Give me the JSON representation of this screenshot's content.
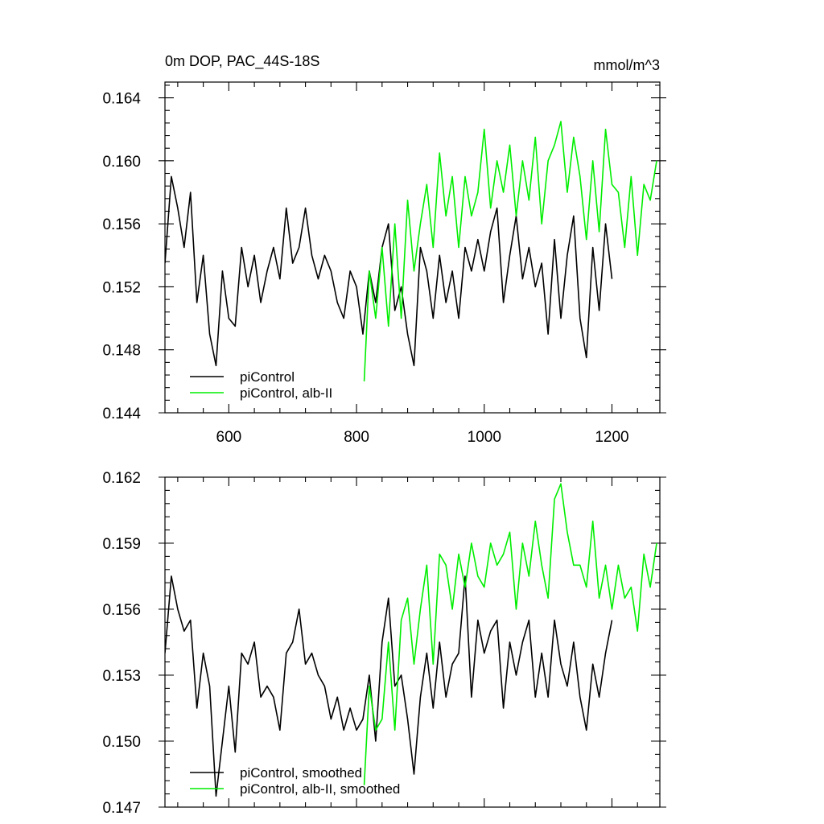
{
  "chart_data": [
    {
      "type": "line",
      "title": "0m DOP, PAC_44S-18S",
      "units": "mmol/m^3",
      "xlim": [
        500,
        1275
      ],
      "ylim": [
        0.144,
        0.165
      ],
      "x_ticks": [
        600,
        800,
        1000,
        1200
      ],
      "x_tick_labels": [
        "600",
        "800",
        "1000",
        "1200"
      ],
      "y_ticks": [
        0.144,
        0.148,
        0.152,
        0.156,
        0.16,
        0.164
      ],
      "y_tick_labels": [
        "0.144",
        "0.148",
        "0.152",
        "0.156",
        "0.160",
        "0.164"
      ],
      "legend_position": "bottom-left",
      "series": [
        {
          "name": "piControl",
          "color": "#000000",
          "x": [
            500,
            510,
            520,
            530,
            540,
            550,
            560,
            570,
            580,
            590,
            600,
            610,
            620,
            630,
            640,
            650,
            660,
            670,
            680,
            690,
            700,
            710,
            720,
            730,
            740,
            750,
            760,
            770,
            780,
            790,
            800,
            810,
            820,
            830,
            840,
            850,
            860,
            870,
            880,
            890,
            900,
            910,
            920,
            930,
            940,
            950,
            960,
            970,
            980,
            990,
            1000,
            1010,
            1020,
            1030,
            1040,
            1050,
            1060,
            1070,
            1080,
            1090,
            1100,
            1110,
            1120,
            1130,
            1140,
            1150,
            1160,
            1170,
            1180,
            1190,
            1200
          ],
          "values": [
            0.1535,
            0.159,
            0.157,
            0.1545,
            0.158,
            0.151,
            0.154,
            0.149,
            0.147,
            0.153,
            0.15,
            0.1495,
            0.1545,
            0.152,
            0.154,
            0.151,
            0.153,
            0.1545,
            0.1525,
            0.157,
            0.1535,
            0.1545,
            0.157,
            0.154,
            0.1525,
            0.154,
            0.153,
            0.151,
            0.15,
            0.153,
            0.152,
            0.149,
            0.153,
            0.151,
            0.1545,
            0.156,
            0.1505,
            0.152,
            0.149,
            0.147,
            0.1545,
            0.153,
            0.15,
            0.154,
            0.151,
            0.153,
            0.15,
            0.1545,
            0.153,
            0.155,
            0.153,
            0.1555,
            0.157,
            0.151,
            0.154,
            0.1565,
            0.1525,
            0.1545,
            0.152,
            0.1535,
            0.149,
            0.155,
            0.15,
            0.154,
            0.1565,
            0.15,
            0.1475,
            0.1545,
            0.1505,
            0.156,
            0.1525
          ]
        },
        {
          "name": "piControl, alb-II",
          "color": "#00ee00",
          "x": [
            812,
            820,
            830,
            840,
            850,
            860,
            870,
            880,
            890,
            900,
            910,
            920,
            930,
            940,
            950,
            960,
            970,
            980,
            990,
            1000,
            1010,
            1020,
            1030,
            1040,
            1050,
            1060,
            1070,
            1080,
            1090,
            1100,
            1110,
            1120,
            1130,
            1140,
            1150,
            1160,
            1170,
            1180,
            1190,
            1200,
            1210,
            1220,
            1230,
            1240,
            1250,
            1260,
            1270
          ],
          "values": [
            0.146,
            0.153,
            0.15,
            0.1545,
            0.1495,
            0.156,
            0.15,
            0.1575,
            0.153,
            0.156,
            0.1585,
            0.1545,
            0.1605,
            0.1565,
            0.159,
            0.1545,
            0.159,
            0.1565,
            0.158,
            0.162,
            0.157,
            0.16,
            0.158,
            0.161,
            0.1565,
            0.16,
            0.1575,
            0.1615,
            0.156,
            0.16,
            0.161,
            0.1625,
            0.158,
            0.1615,
            0.159,
            0.155,
            0.16,
            0.1555,
            0.162,
            0.1585,
            0.158,
            0.1545,
            0.159,
            0.154,
            0.1585,
            0.1575,
            0.16
          ]
        }
      ]
    },
    {
      "type": "line",
      "title": "",
      "xlim": [
        500,
        1275
      ],
      "ylim": [
        0.147,
        0.162
      ],
      "x_ticks": [
        600,
        800,
        1000,
        1200
      ],
      "y_ticks": [
        0.147,
        0.15,
        0.153,
        0.156,
        0.159,
        0.162
      ],
      "y_tick_labels": [
        "0.147",
        "0.150",
        "0.153",
        "0.156",
        "0.159",
        "0.162"
      ],
      "legend_position": "bottom-left",
      "series": [
        {
          "name": "piControl, smoothed",
          "color": "#000000",
          "x": [
            500,
            510,
            520,
            530,
            540,
            550,
            560,
            570,
            580,
            590,
            600,
            610,
            620,
            630,
            640,
            650,
            660,
            670,
            680,
            690,
            700,
            710,
            720,
            730,
            740,
            750,
            760,
            770,
            780,
            790,
            800,
            810,
            820,
            830,
            840,
            850,
            860,
            870,
            880,
            890,
            900,
            910,
            920,
            930,
            940,
            950,
            960,
            970,
            980,
            990,
            1000,
            1010,
            1020,
            1030,
            1040,
            1050,
            1060,
            1070,
            1080,
            1090,
            1100,
            1110,
            1120,
            1130,
            1140,
            1150,
            1160,
            1170,
            1180,
            1190,
            1200
          ],
          "values": [
            0.154,
            0.1575,
            0.156,
            0.155,
            0.1555,
            0.1515,
            0.154,
            0.1525,
            0.1475,
            0.15,
            0.1525,
            0.1495,
            0.154,
            0.1535,
            0.1545,
            0.152,
            0.1525,
            0.152,
            0.1505,
            0.154,
            0.1545,
            0.156,
            0.1535,
            0.154,
            0.153,
            0.1525,
            0.151,
            0.152,
            0.1505,
            0.1515,
            0.1505,
            0.151,
            0.153,
            0.15,
            0.1545,
            0.1565,
            0.1525,
            0.153,
            0.151,
            0.1485,
            0.152,
            0.154,
            0.1515,
            0.1545,
            0.152,
            0.1535,
            0.154,
            0.1575,
            0.152,
            0.1555,
            0.154,
            0.155,
            0.1555,
            0.1515,
            0.1545,
            0.153,
            0.1545,
            0.1555,
            0.152,
            0.154,
            0.152,
            0.1555,
            0.1535,
            0.1525,
            0.1545,
            0.152,
            0.1505,
            0.1535,
            0.152,
            0.154,
            0.1555
          ]
        },
        {
          "name": "piControl, alb-II, smoothed",
          "color": "#00ee00",
          "x": [
            812,
            820,
            830,
            840,
            850,
            860,
            870,
            880,
            890,
            900,
            910,
            920,
            930,
            940,
            950,
            960,
            970,
            980,
            990,
            1000,
            1010,
            1020,
            1030,
            1040,
            1050,
            1060,
            1070,
            1080,
            1090,
            1100,
            1110,
            1120,
            1130,
            1140,
            1150,
            1160,
            1170,
            1180,
            1190,
            1200,
            1210,
            1220,
            1230,
            1240,
            1250,
            1260,
            1270
          ],
          "values": [
            0.148,
            0.1525,
            0.1505,
            0.151,
            0.1545,
            0.1505,
            0.1555,
            0.1565,
            0.1535,
            0.156,
            0.158,
            0.1535,
            0.1585,
            0.158,
            0.156,
            0.1585,
            0.157,
            0.159,
            0.1575,
            0.157,
            0.159,
            0.158,
            0.1585,
            0.1595,
            0.156,
            0.159,
            0.1575,
            0.16,
            0.158,
            0.1565,
            0.161,
            0.1617,
            0.1595,
            0.158,
            0.158,
            0.157,
            0.16,
            0.1565,
            0.158,
            0.156,
            0.158,
            0.1565,
            0.157,
            0.155,
            0.1585,
            0.157,
            0.159
          ]
        }
      ]
    }
  ]
}
